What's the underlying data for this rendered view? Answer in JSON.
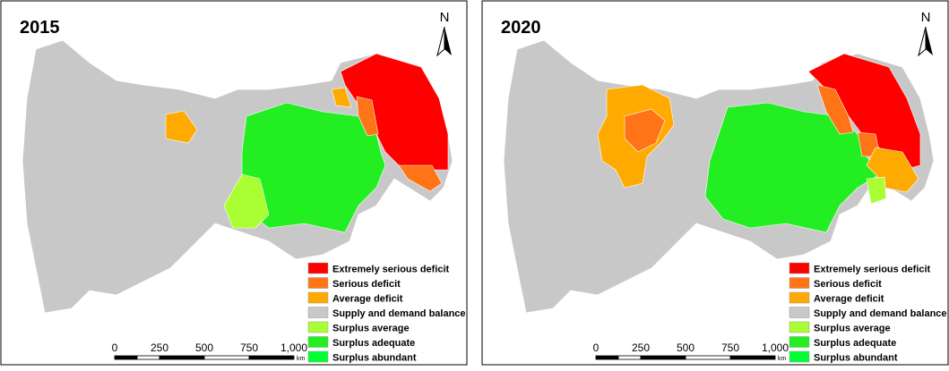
{
  "panels": [
    {
      "title": "2015"
    },
    {
      "title": "2020"
    }
  ],
  "north_label": "N",
  "legend": {
    "items": [
      {
        "label": "Extremely serious deficit",
        "color": "#ff0000"
      },
      {
        "label": "Serious deficit",
        "color": "#ff7417"
      },
      {
        "label": "Average deficit",
        "color": "#ffaa00"
      },
      {
        "label": "Supply and demand balance",
        "color": "#c8c8c8"
      },
      {
        "label": "Surplus average",
        "color": "#aaff33"
      },
      {
        "label": "Surplus adequate",
        "color": "#22ee22"
      },
      {
        "label": "Surplus abundant",
        "color": "#00ff33"
      }
    ]
  },
  "scale_bar": {
    "labels": [
      "0",
      "250",
      "500",
      "750",
      "1,000"
    ],
    "unit": "km"
  }
}
